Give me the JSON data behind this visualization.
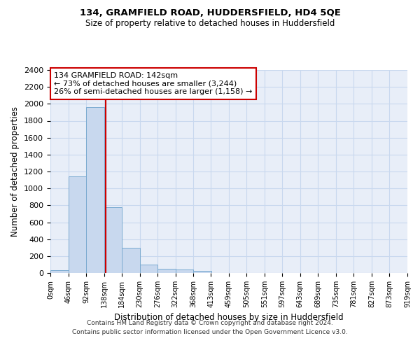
{
  "title1": "134, GRAMFIELD ROAD, HUDDERSFIELD, HD4 5QE",
  "title2": "Size of property relative to detached houses in Huddersfield",
  "xlabel": "Distribution of detached houses by size in Huddersfield",
  "ylabel": "Number of detached properties",
  "annotation_line1": "134 GRAMFIELD ROAD: 142sqm",
  "annotation_line2": "← 73% of detached houses are smaller (3,244)",
  "annotation_line3": "26% of semi-detached houses are larger (1,158) →",
  "bin_edges": [
    0,
    46,
    92,
    138,
    184,
    230,
    276,
    322,
    368,
    413,
    459,
    505,
    551,
    597,
    643,
    689,
    735,
    781,
    827,
    873,
    919
  ],
  "bar_heights": [
    35,
    1140,
    1960,
    780,
    300,
    100,
    47,
    40,
    25,
    0,
    0,
    0,
    0,
    0,
    0,
    0,
    0,
    0,
    0,
    0
  ],
  "bar_color": "#c8d8ee",
  "bar_edge_color": "#7aaad0",
  "grid_color": "#c8d8ee",
  "background_color": "#e8eef8",
  "property_line_x": 142,
  "property_line_color": "#cc0000",
  "annotation_box_color": "#cc0000",
  "ylim": [
    0,
    2400
  ],
  "yticks": [
    0,
    200,
    400,
    600,
    800,
    1000,
    1200,
    1400,
    1600,
    1800,
    2000,
    2200,
    2400
  ],
  "footer1": "Contains HM Land Registry data © Crown copyright and database right 2024.",
  "footer2": "Contains public sector information licensed under the Open Government Licence v3.0."
}
